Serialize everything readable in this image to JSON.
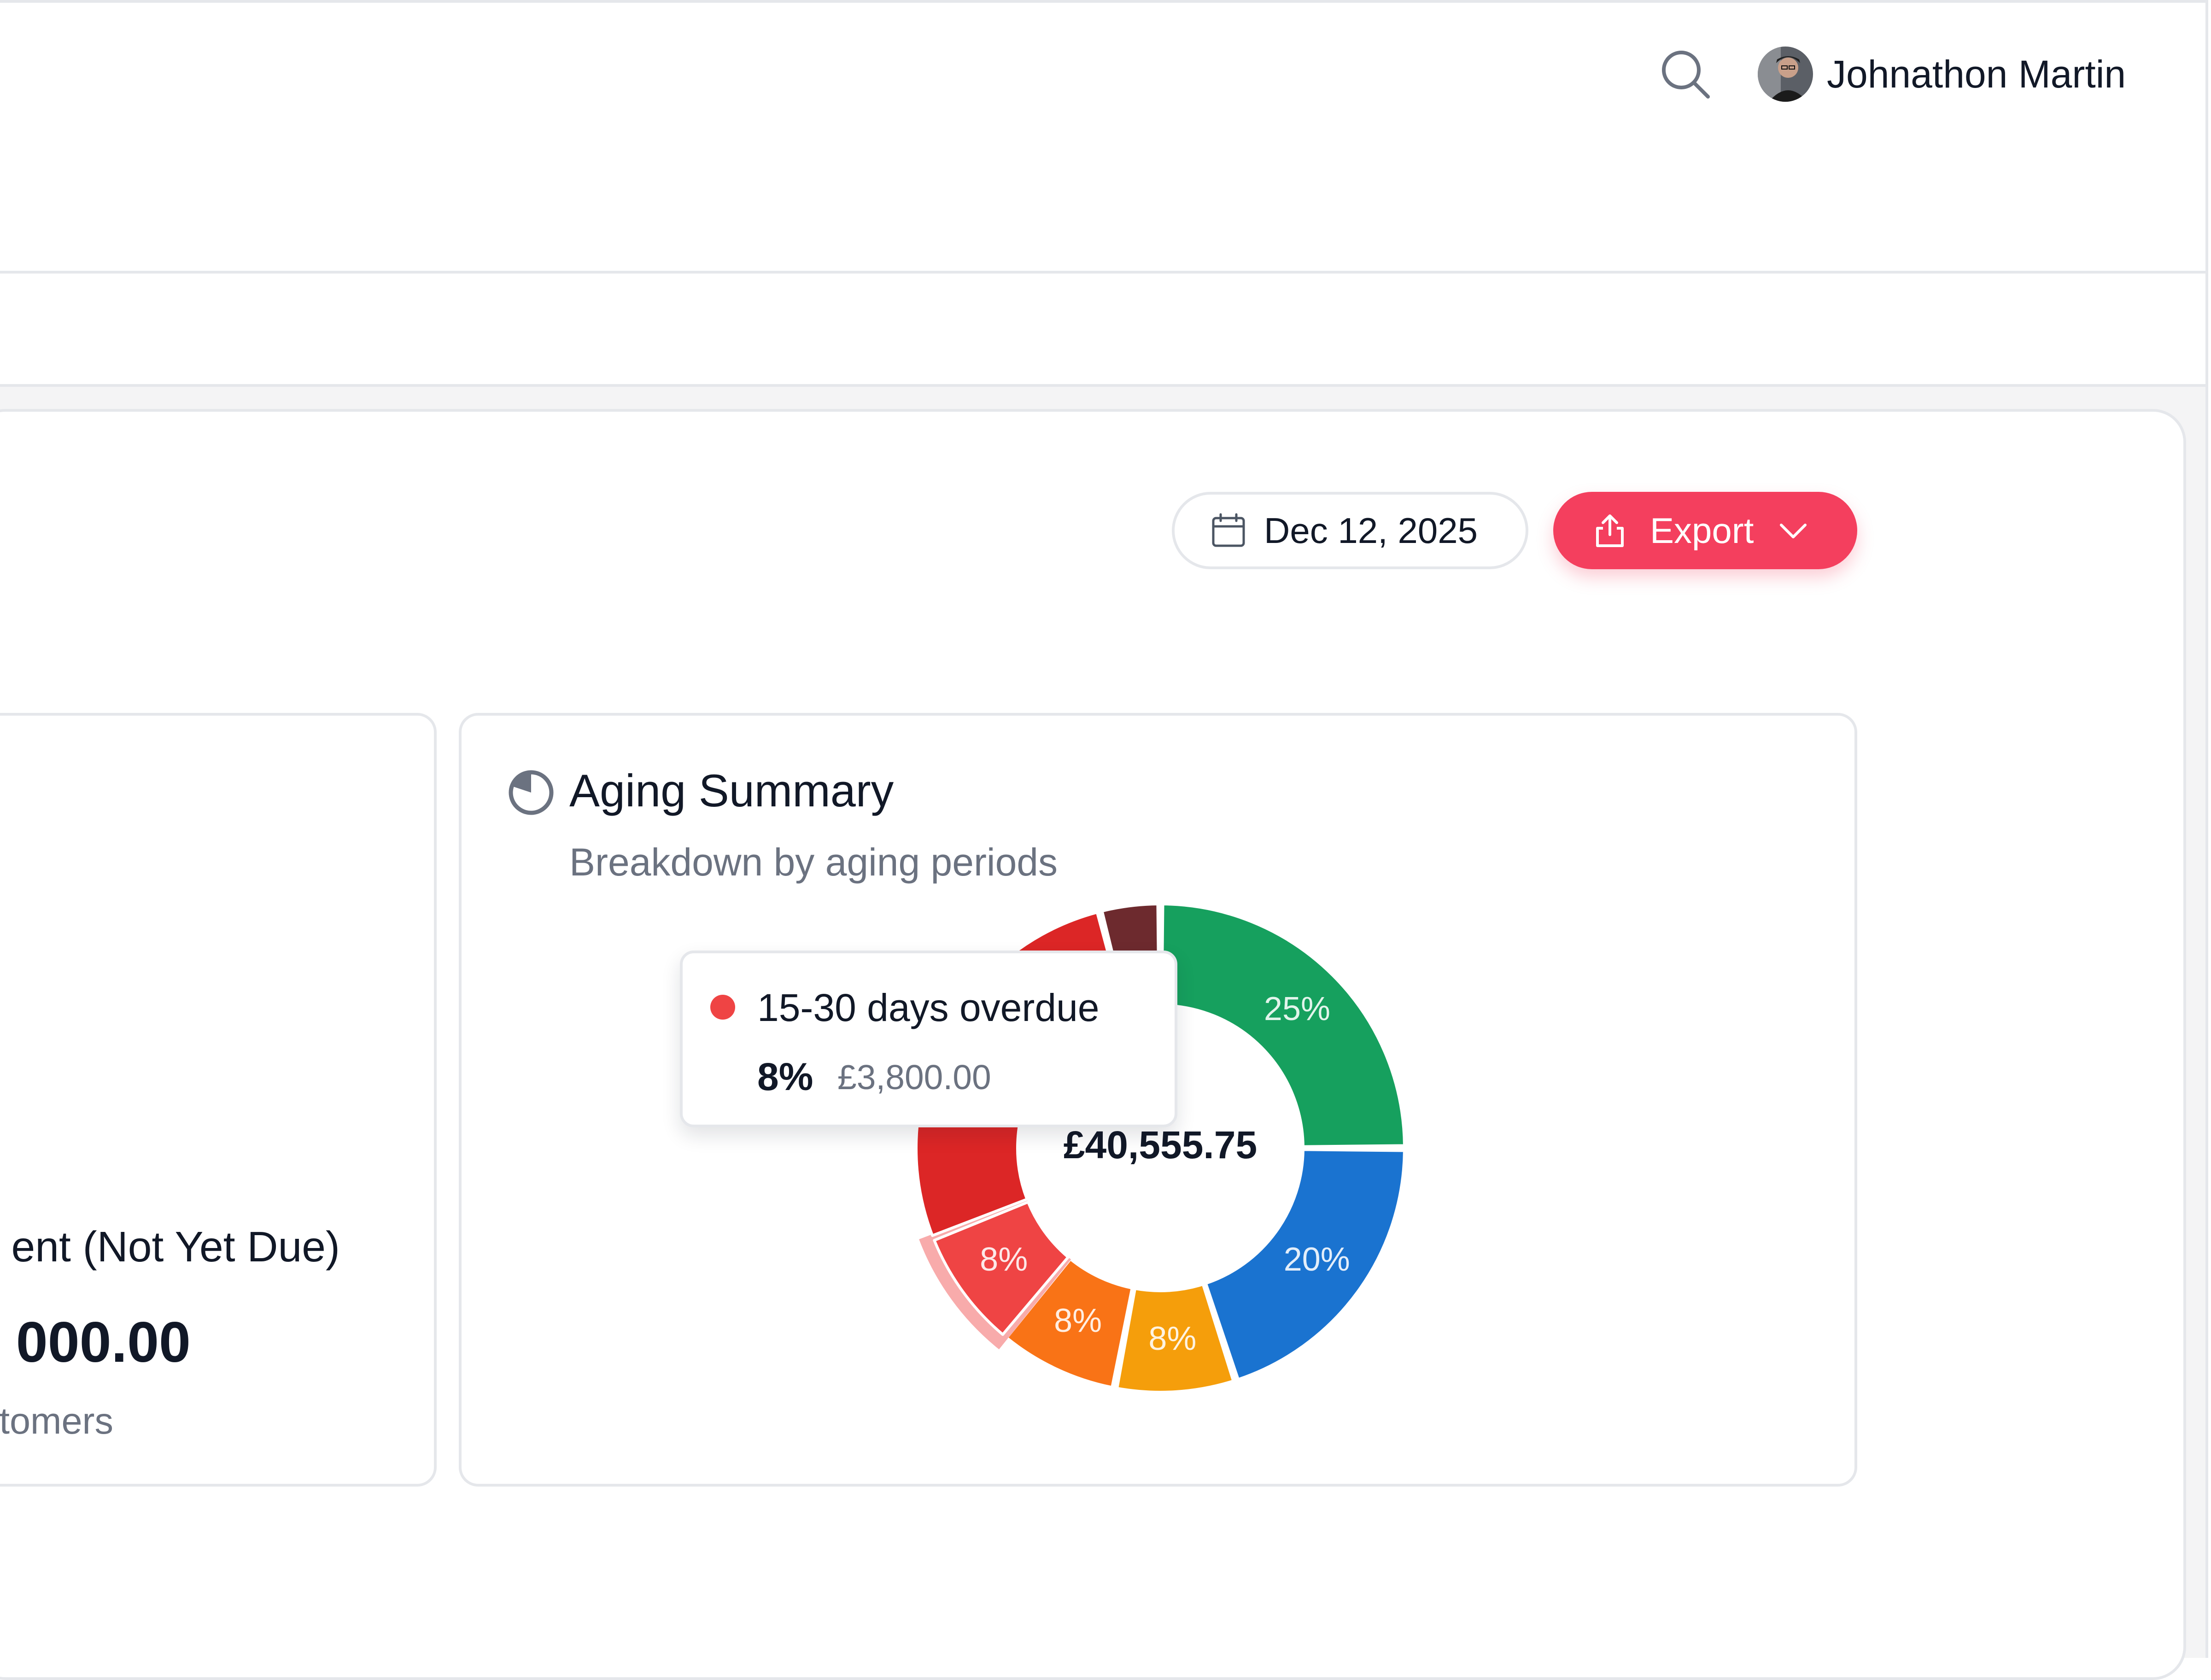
{
  "header": {
    "user_name": "Johnathon Martin",
    "icons": {
      "search": "search-icon",
      "avatar": "avatar"
    }
  },
  "toolbar": {
    "date_label": "Dec 12, 2025",
    "export_label": "Export",
    "icons": {
      "date": "calendar-icon",
      "export": "share-icon",
      "dropdown": "chevron-down-icon"
    },
    "accent_color": "#f43f5e"
  },
  "current_card": {
    "label": "ent (Not Yet Due)",
    "value": "000.00",
    "sub": "stomers"
  },
  "aging": {
    "title": "Aging Summary",
    "subtitle": "Breakdown by aging periods",
    "icon": "pie-chart-icon",
    "total": "£40,555.75"
  },
  "tooltip": {
    "label": "15-30 days overdue",
    "percent": "8%",
    "amount": "£3,800.00",
    "color": "#ef4444"
  },
  "chart_data": {
    "type": "pie",
    "variant": "donut",
    "center_label": "£40,555.75",
    "series": [
      {
        "value": 25,
        "label": "25%",
        "color": "#16a05e"
      },
      {
        "value": 20,
        "label": "20%",
        "color": "#1a73d0"
      },
      {
        "value": 8,
        "label": "8%",
        "color": "#f59e0b"
      },
      {
        "value": 8,
        "label": "8%",
        "color": "#f97316"
      },
      {
        "name": "15-30 days overdue",
        "value": 8,
        "label": "8%",
        "color": "#ef4444",
        "highlighted": true
      },
      {
        "value": 27,
        "label": "",
        "color": "#dc2626"
      },
      {
        "value": 4,
        "label": "",
        "color": "#6d2a2e"
      }
    ]
  }
}
